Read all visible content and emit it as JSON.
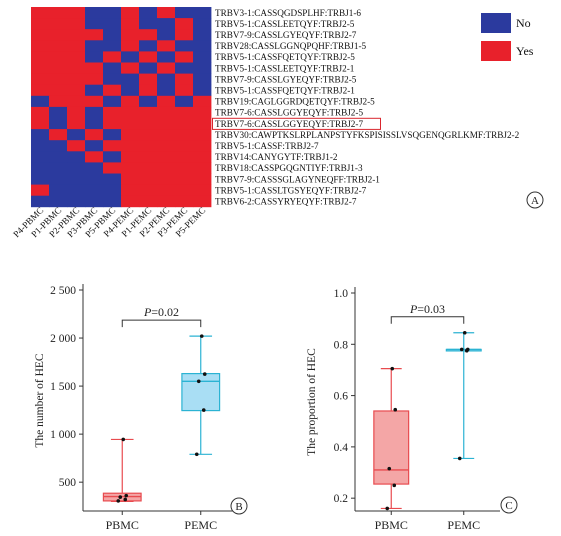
{
  "chart_data": [
    {
      "panel": "A",
      "type": "heatmap",
      "columns": [
        "P4-PBMC",
        "P1-PBMC",
        "P2-PBMC",
        "P3-PBMC",
        "P5-PBMC",
        "P4-PEMC",
        "P1-PEMC",
        "P2-PEMC",
        "P3-PEMC",
        "P5-PEMC"
      ],
      "rows": [
        "TRBV3-1:CASSQGDSPLHF:TRBJ1-6",
        "TRBV5-1:CASSLEETQYF:TRBJ2-5",
        "TRBV7-9:CASSLGYEQYF:TRBJ2-7",
        "TRBV28:CASSLGGNQPQHF:TRBJ1-5",
        "TRBV5-1:CASSFQETQYF:TRBJ2-5",
        "TRBV5-1:CASSLEETQYF:TRBJ2-1",
        "TRBV7-9:CASSLGYEQYF:TRBJ2-5",
        "TRBV5-1:CASSFQETQYF:TRBJ2-1",
        "TRBV19:CAGLGGRDQETQYF:TRBJ2-5",
        "TRBV7-6:CASSLGGYEQYF:TRBJ2-5",
        "TRBV7-6:CASSLGGYEQYF:TRBJ2-7",
        "TRBV30:CAWPTKSLRPLANPSTYFKSPISISSLVSQGENQGRLKMF:TRBJ2-2",
        "TRBV5-1:CASSF:TRBJ2-7",
        "TRBV14:CANYGYTF:TRBJ1-2",
        "TRBV18:CASSPGQGNTIYF:TRBJ1-3",
        "TRBV7-9:CASSSGLAGYNEQFF:TRBJ2-1",
        "TRBV5-1:CASSLTGSYEQYF:TRBJ2-7",
        "TRBV6-2:CASSYRYEQYF:TRBJ2-7"
      ],
      "highlighted_row": "TRBV7-6:CASSLGGYEQYF:TRBJ2-7",
      "values": [
        [
          1,
          1,
          1,
          0,
          0,
          1,
          0,
          1,
          0,
          0
        ],
        [
          1,
          1,
          1,
          0,
          0,
          1,
          0,
          0,
          1,
          0
        ],
        [
          1,
          1,
          1,
          1,
          0,
          1,
          1,
          0,
          1,
          0
        ],
        [
          1,
          1,
          1,
          0,
          0,
          1,
          0,
          1,
          0,
          0
        ],
        [
          1,
          1,
          1,
          0,
          1,
          0,
          1,
          0,
          1,
          0
        ],
        [
          1,
          1,
          1,
          1,
          0,
          1,
          0,
          1,
          0,
          0
        ],
        [
          1,
          1,
          1,
          1,
          0,
          0,
          1,
          0,
          1,
          0
        ],
        [
          1,
          1,
          1,
          0,
          1,
          0,
          1,
          0,
          1,
          0
        ],
        [
          0,
          1,
          1,
          1,
          0,
          1,
          0,
          1,
          0,
          1
        ],
        [
          1,
          0,
          1,
          0,
          1,
          1,
          1,
          1,
          1,
          1
        ],
        [
          1,
          0,
          1,
          0,
          1,
          1,
          1,
          1,
          1,
          1
        ],
        [
          0,
          1,
          0,
          1,
          0,
          1,
          1,
          1,
          1,
          1
        ],
        [
          0,
          0,
          1,
          0,
          1,
          1,
          1,
          1,
          1,
          1
        ],
        [
          0,
          0,
          0,
          1,
          0,
          1,
          1,
          1,
          1,
          1
        ],
        [
          0,
          0,
          0,
          0,
          1,
          1,
          1,
          1,
          1,
          1
        ],
        [
          0,
          0,
          0,
          0,
          0,
          1,
          1,
          1,
          1,
          1
        ],
        [
          1,
          0,
          0,
          0,
          0,
          1,
          1,
          1,
          1,
          1
        ],
        [
          0,
          0,
          0,
          0,
          0,
          1,
          1,
          1,
          1,
          1
        ]
      ],
      "legend": [
        {
          "label": "No",
          "value": 0,
          "color": "#2b3a9e"
        },
        {
          "label": "Yes",
          "value": 1,
          "color": "#e8212b"
        }
      ],
      "legend_position": "right"
    },
    {
      "panel": "B",
      "type": "box",
      "categories": [
        "PBMC",
        "PEMC"
      ],
      "ylabel": "The number of HEC",
      "ylim": [
        200,
        2500
      ],
      "yticks": [
        500,
        1000,
        1500,
        2000,
        2500
      ],
      "ytick_labels": [
        "500",
        "1 000",
        "1 500",
        "2 000",
        "2 500"
      ],
      "boxes": [
        {
          "category": "PBMC",
          "whisker_low": 300,
          "q1": 305,
          "median": 350,
          "q3": 385,
          "whisker_high": 945,
          "points": [
            305,
            320,
            345,
            360,
            945
          ],
          "color": "#e84b4f",
          "fill": "#f4a6a6"
        },
        {
          "category": "PEMC",
          "whisker_low": 790,
          "q1": 1245,
          "median": 1550,
          "q3": 1630,
          "whisker_high": 2020,
          "points": [
            790,
            1250,
            1550,
            1625,
            2020
          ],
          "color": "#2bb3d3",
          "fill": "#a9def4"
        }
      ],
      "annotation": {
        "p_symbol": "P",
        "p_value": "=0.02"
      }
    },
    {
      "panel": "C",
      "type": "box",
      "categories": [
        "PBMC",
        "PEMC"
      ],
      "ylabel": "The proportion of HEC",
      "ylim": [
        0.15,
        1.0
      ],
      "yticks": [
        0.2,
        0.4,
        0.6,
        0.8,
        1.0
      ],
      "ytick_labels": [
        "0.2",
        "0.4",
        "0.6",
        "0.8",
        "1.0"
      ],
      "boxes": [
        {
          "category": "PBMC",
          "whisker_low": 0.16,
          "q1": 0.255,
          "median": 0.31,
          "q3": 0.54,
          "whisker_high": 0.705,
          "points": [
            0.16,
            0.25,
            0.315,
            0.545,
            0.705
          ],
          "color": "#e84b4f",
          "fill": "#f4a6a6"
        },
        {
          "category": "PEMC",
          "whisker_low": 0.355,
          "q1": 0.775,
          "median": 0.78,
          "q3": 0.78,
          "whisker_high": 0.845,
          "points": [
            0.355,
            0.775,
            0.78,
            0.78,
            0.845
          ],
          "color": "#2bb3d3",
          "fill": "#a9def4"
        }
      ],
      "annotation": {
        "p_symbol": "P",
        "p_value": "=0.03"
      }
    }
  ],
  "panel_labels": [
    "A",
    "B",
    "C"
  ]
}
